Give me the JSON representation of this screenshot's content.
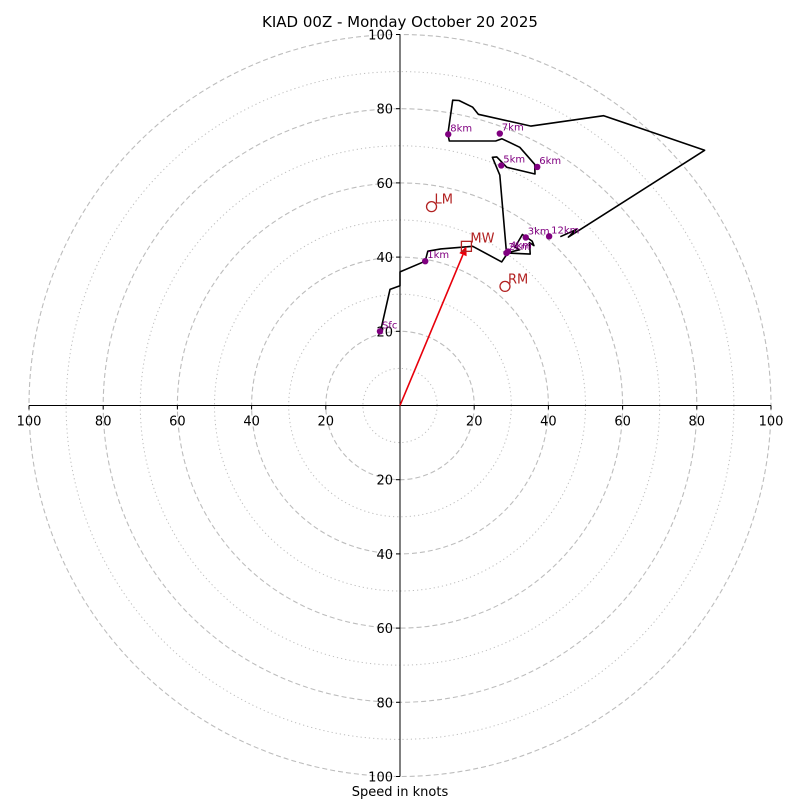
{
  "chart_data": {
    "type": "hodograph",
    "title": "KIAD 00Z - Monday October 20 2025",
    "xlabel": "Speed in knots",
    "xlim": [
      -100,
      100
    ],
    "ylim": [
      -100,
      100
    ],
    "ring_major": [
      20,
      40,
      60,
      80,
      100
    ],
    "ring_minor": [
      10,
      30,
      50,
      70,
      90
    ],
    "ticks": {
      "x": [
        {
          "value": -100,
          "label": "100"
        },
        {
          "value": -80,
          "label": "80"
        },
        {
          "value": -60,
          "label": "60"
        },
        {
          "value": -40,
          "label": "40"
        },
        {
          "value": -20,
          "label": "20"
        },
        {
          "value": 20,
          "label": "20"
        },
        {
          "value": 40,
          "label": "40"
        },
        {
          "value": 60,
          "label": "60"
        },
        {
          "value": 80,
          "label": "80"
        },
        {
          "value": 100,
          "label": "100"
        }
      ],
      "y": [
        {
          "value": 100,
          "label": "100"
        },
        {
          "value": 80,
          "label": "80"
        },
        {
          "value": 60,
          "label": "60"
        },
        {
          "value": 40,
          "label": "40"
        },
        {
          "value": 20,
          "label": "20"
        },
        {
          "value": -20,
          "label": "20"
        },
        {
          "value": -40,
          "label": "40"
        },
        {
          "value": -60,
          "label": "60"
        },
        {
          "value": -80,
          "label": "80"
        },
        {
          "value": -100,
          "label": "100"
        }
      ]
    },
    "wind_trace": [
      [
        -5.4,
        20
      ],
      [
        -4.9,
        21.5
      ],
      [
        -2.7,
        31.3
      ],
      [
        0,
        32.3
      ],
      [
        0,
        36
      ],
      [
        6.8,
        38.9
      ],
      [
        7.5,
        41.6
      ],
      [
        11,
        42.2
      ],
      [
        19.6,
        42.9
      ],
      [
        27.4,
        38.7
      ],
      [
        29.1,
        41.2
      ],
      [
        32.3,
        42
      ],
      [
        31,
        42.7
      ],
      [
        33,
        46.1
      ],
      [
        35.6,
        44.3
      ],
      [
        36.1,
        43.1
      ],
      [
        34.9,
        43.9
      ],
      [
        35.1,
        40.8
      ],
      [
        28.7,
        41.1
      ],
      [
        26.9,
        62.1
      ],
      [
        24.9,
        66.9
      ],
      [
        26.1,
        67
      ],
      [
        28.8,
        64.2
      ],
      [
        36.4,
        62.4
      ],
      [
        36.3,
        65
      ],
      [
        32.3,
        69.6
      ],
      [
        27.5,
        71.9
      ],
      [
        25.8,
        71.3
      ],
      [
        13.3,
        71.3
      ],
      [
        12.9,
        73.2
      ],
      [
        14.2,
        82.3
      ],
      [
        15.9,
        82.2
      ],
      [
        19.6,
        80.4
      ],
      [
        21.1,
        78.5
      ],
      [
        35.3,
        75.3
      ],
      [
        54.9,
        78.1
      ],
      [
        82.1,
        68.8
      ],
      [
        45.4,
        45.4
      ],
      [
        47.5,
        47.4
      ],
      [
        43.2,
        45.5
      ]
    ],
    "height_points": [
      {
        "label": "Sfc",
        "u": -5.4,
        "v": 20
      },
      {
        "label": "1km",
        "u": 6.8,
        "v": 38.9
      },
      {
        "label": "2km",
        "u": 28.7,
        "v": 41.1
      },
      {
        "label": "3km",
        "u": 33.9,
        "v": 45.3
      },
      {
        "label": "4km",
        "u": 29.1,
        "v": 41.5
      },
      {
        "label": "5km",
        "u": 27.3,
        "v": 64.7
      },
      {
        "label": "6km",
        "u": 37,
        "v": 64.3
      },
      {
        "label": "7km",
        "u": 26.9,
        "v": 73.3
      },
      {
        "label": "8km",
        "u": 13,
        "v": 73.1
      },
      {
        "label": "12km",
        "u": 40.2,
        "v": 45.6
      }
    ],
    "storm_motion": {
      "mean_wind": {
        "label": "MW",
        "u": 17.9,
        "v": 42.9
      },
      "left_mover": {
        "label": "LM",
        "u": 8.5,
        "v": 53.6
      },
      "right_mover": {
        "label": "RM",
        "u": 28.3,
        "v": 32.1
      },
      "vector_color": "#e8000b"
    },
    "colors": {
      "trace": "#000000",
      "height_marker": "#800080",
      "storm_marker": "#b22222",
      "grid": "#bdbdbd"
    }
  }
}
